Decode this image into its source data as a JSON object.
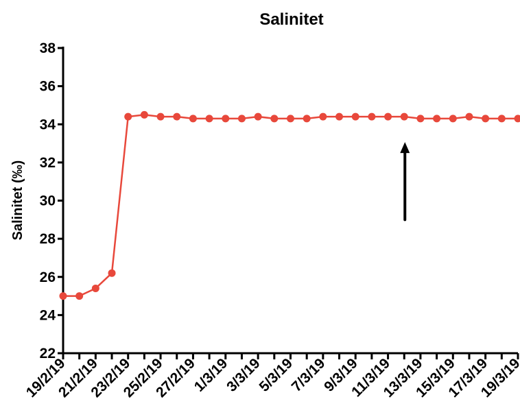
{
  "chart_data": {
    "type": "line",
    "title": "Salinitet",
    "ylabel": "Salinitet (‰)",
    "xlabel": "",
    "ylim": [
      22,
      38
    ],
    "yticks": [
      "22",
      "24",
      "26",
      "28",
      "30",
      "32",
      "34",
      "36",
      "38"
    ],
    "xticklabels": [
      "19/2/19",
      "21/2/19",
      "23/2/19",
      "25/2/19",
      "27/2/19",
      "1/3/19",
      "3/3/19",
      "5/3/19",
      "7/3/19",
      "9/3/19",
      "11/3/19",
      "13/3/19",
      "15/3/19",
      "17/3/19",
      "19/3/19"
    ],
    "x": [
      "19/2/19",
      "20/2/19",
      "21/2/19",
      "22/2/19",
      "23/2/19",
      "24/2/19",
      "25/2/19",
      "26/2/19",
      "27/2/19",
      "28/2/19",
      "1/3/19",
      "2/3/19",
      "3/3/19",
      "4/3/19",
      "5/3/19",
      "6/3/19",
      "7/3/19",
      "8/3/19",
      "9/3/19",
      "10/3/19",
      "11/3/19",
      "12/3/19",
      "13/3/19",
      "14/3/19",
      "15/3/19",
      "16/3/19",
      "17/3/19",
      "18/3/19",
      "19/3/19"
    ],
    "values": [
      25.0,
      25.0,
      25.4,
      26.2,
      34.4,
      34.5,
      34.4,
      34.4,
      34.3,
      34.3,
      34.3,
      34.3,
      34.4,
      34.3,
      34.3,
      34.3,
      34.4,
      34.4,
      34.4,
      34.4,
      34.4,
      34.4,
      34.3,
      34.3,
      34.3,
      34.4,
      34.3,
      34.3,
      34.3
    ],
    "series_color": "#e8483b",
    "grid": false,
    "annotations": [
      {
        "type": "arrow",
        "x": "12/3/19",
        "y_from": 29.0,
        "y_to": 33.0,
        "color": "#000000"
      }
    ]
  }
}
